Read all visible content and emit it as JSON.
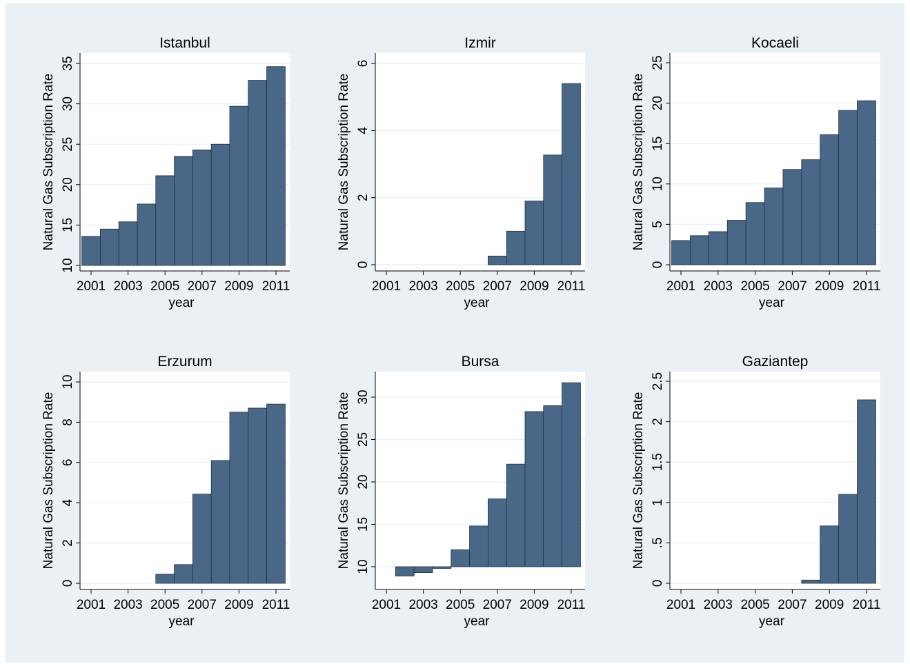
{
  "chart_data": [
    {
      "type": "bar",
      "title": "Istanbul",
      "xlabel": "year",
      "ylabel": "Natural Gas Subscription Rate",
      "categories": [
        2001,
        2002,
        2003,
        2004,
        2005,
        2006,
        2007,
        2008,
        2009,
        2010,
        2011
      ],
      "values": [
        13.6,
        14.5,
        15.4,
        17.6,
        21.1,
        23.5,
        24.3,
        25.0,
        29.7,
        32.9,
        34.6
      ],
      "ylim": [
        10,
        35
      ],
      "yticks": [
        10,
        15,
        20,
        25,
        30,
        35
      ],
      "ytick_labels": [
        "10",
        "15",
        "20",
        "25",
        "30",
        "35"
      ],
      "xticks": [
        2001,
        2003,
        2005,
        2007,
        2009,
        2011
      ],
      "xtick_labels": [
        "2001",
        "2003",
        "2005",
        "2007",
        "2009",
        "2011"
      ]
    },
    {
      "type": "bar",
      "title": "Izmir",
      "xlabel": "year",
      "ylabel": "Natural Gas Subscription Rate",
      "categories": [
        2001,
        2002,
        2003,
        2004,
        2005,
        2006,
        2007,
        2008,
        2009,
        2010,
        2011
      ],
      "values": [
        0,
        0,
        0,
        0,
        0,
        0,
        0.26,
        1.0,
        1.9,
        3.27,
        5.4
      ],
      "ylim": [
        0,
        6
      ],
      "yticks": [
        0,
        2,
        4,
        6
      ],
      "ytick_labels": [
        "0",
        "2",
        "4",
        "6"
      ],
      "xticks": [
        2001,
        2003,
        2005,
        2007,
        2009,
        2011
      ],
      "xtick_labels": [
        "2001",
        "2003",
        "2005",
        "2007",
        "2009",
        "2011"
      ]
    },
    {
      "type": "bar",
      "title": "Kocaeli",
      "xlabel": "year",
      "ylabel": "Natural Gas Subscription Rate",
      "categories": [
        2001,
        2002,
        2003,
        2004,
        2005,
        2006,
        2007,
        2008,
        2009,
        2010,
        2011
      ],
      "values": [
        3.0,
        3.6,
        4.1,
        5.5,
        7.7,
        9.5,
        11.8,
        13.0,
        16.1,
        19.1,
        20.3
      ],
      "ylim": [
        0,
        25
      ],
      "yticks": [
        0,
        5,
        10,
        15,
        20,
        25
      ],
      "ytick_labels": [
        "0",
        "5",
        "10",
        "15",
        "20",
        "25"
      ],
      "xticks": [
        2001,
        2003,
        2005,
        2007,
        2009,
        2011
      ],
      "xtick_labels": [
        "2001",
        "2003",
        "2005",
        "2007",
        "2009",
        "2011"
      ]
    },
    {
      "type": "bar",
      "title": "Erzurum",
      "xlabel": "year",
      "ylabel": "Natural Gas Subscription Rate",
      "categories": [
        2001,
        2002,
        2003,
        2004,
        2005,
        2006,
        2007,
        2008,
        2009,
        2010,
        2011
      ],
      "values": [
        0,
        0,
        0,
        0,
        0.45,
        0.93,
        4.43,
        6.1,
        8.5,
        8.7,
        8.9
      ],
      "ylim": [
        0,
        10
      ],
      "yticks": [
        0,
        2,
        4,
        6,
        8,
        10
      ],
      "ytick_labels": [
        "0",
        "2",
        "4",
        "6",
        "8",
        "10"
      ],
      "xticks": [
        2001,
        2003,
        2005,
        2007,
        2009,
        2011
      ],
      "xtick_labels": [
        "2001",
        "2003",
        "2005",
        "2007",
        "2009",
        "2011"
      ]
    },
    {
      "type": "bar",
      "title": "Bursa",
      "xlabel": "year",
      "ylabel": "Natural Gas Subscription Rate",
      "categories": [
        2002,
        2003,
        2004,
        2005,
        2006,
        2007,
        2008,
        2009,
        2010,
        2011
      ],
      "values": [
        8.9,
        9.3,
        9.8,
        12.0,
        14.8,
        18.0,
        22.1,
        28.3,
        29.0,
        31.7
      ],
      "ylim": [
        10,
        30
      ],
      "yticks": [
        10,
        15,
        20,
        25,
        30
      ],
      "ytick_labels": [
        "10",
        "15",
        "20",
        "25",
        "30"
      ],
      "xticks": [
        2001,
        2003,
        2005,
        2007,
        2009,
        2011
      ],
      "xtick_labels": [
        "2001",
        "2003",
        "2005",
        "2007",
        "2009",
        "2011"
      ]
    },
    {
      "type": "bar",
      "title": "Gaziantep",
      "xlabel": "year",
      "ylabel": "Natural Gas Subscription Rate",
      "categories": [
        2001,
        2002,
        2003,
        2004,
        2005,
        2006,
        2007,
        2008,
        2009,
        2010,
        2011
      ],
      "values": [
        0,
        0,
        0,
        0,
        0,
        0,
        0,
        0.04,
        0.71,
        1.1,
        2.27
      ],
      "ylim": [
        0,
        2.5
      ],
      "yticks": [
        0,
        0.5,
        1,
        1.5,
        2,
        2.5
      ],
      "ytick_labels": [
        "0",
        ".5",
        "1",
        "1.5",
        "2",
        "2.5"
      ],
      "xticks": [
        2001,
        2003,
        2005,
        2007,
        2009,
        2011
      ],
      "xtick_labels": [
        "2001",
        "2003",
        "2005",
        "2007",
        "2009",
        "2011"
      ]
    }
  ],
  "colors": {
    "bar_fill": "#496888",
    "bar_stroke": "#1f2f3f",
    "plot_bg": "#ffffff",
    "frame_bg": "#eaf0f4",
    "grid": "#eaf0f4"
  }
}
